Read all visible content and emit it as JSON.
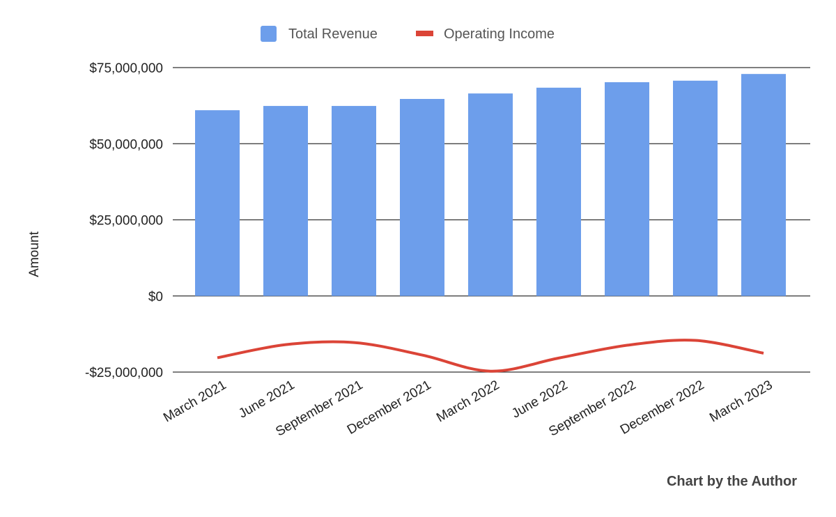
{
  "chart_data": {
    "type": "bar+line",
    "categories": [
      "March 2021",
      "June 2021",
      "September 2021",
      "December 2021",
      "March 2022",
      "June 2022",
      "September 2022",
      "December 2022",
      "March 2023"
    ],
    "series": [
      {
        "name": "Total Revenue",
        "type": "bar",
        "color": "#6d9eeb",
        "values": [
          61000000.0,
          62400000.0,
          62400000.0,
          64700000.0,
          66500000.0,
          68400000.0,
          70200000.0,
          70700000.0,
          72900000.0
        ]
      },
      {
        "name": "Operating Income",
        "type": "line",
        "smooth": true,
        "color": "#db4437",
        "values": [
          -20300000.0,
          -16000000.0,
          -15300000.0,
          -19400000.0,
          -24700000.0,
          -20400000.0,
          -16200000.0,
          -14600000.0,
          -18800000.0
        ]
      }
    ],
    "ylabel": "Amount",
    "xlabel": "",
    "ylim": [
      -25000000,
      75000000
    ],
    "yticks": [
      -25000000,
      0,
      25000000,
      50000000,
      75000000
    ],
    "ytick_labels": [
      "-$25,000,000",
      "$0",
      "$25,000,000",
      "$50,000,000",
      "$75,000,000"
    ],
    "grid": true,
    "legend": "top"
  },
  "credit": "Chart by the Author"
}
